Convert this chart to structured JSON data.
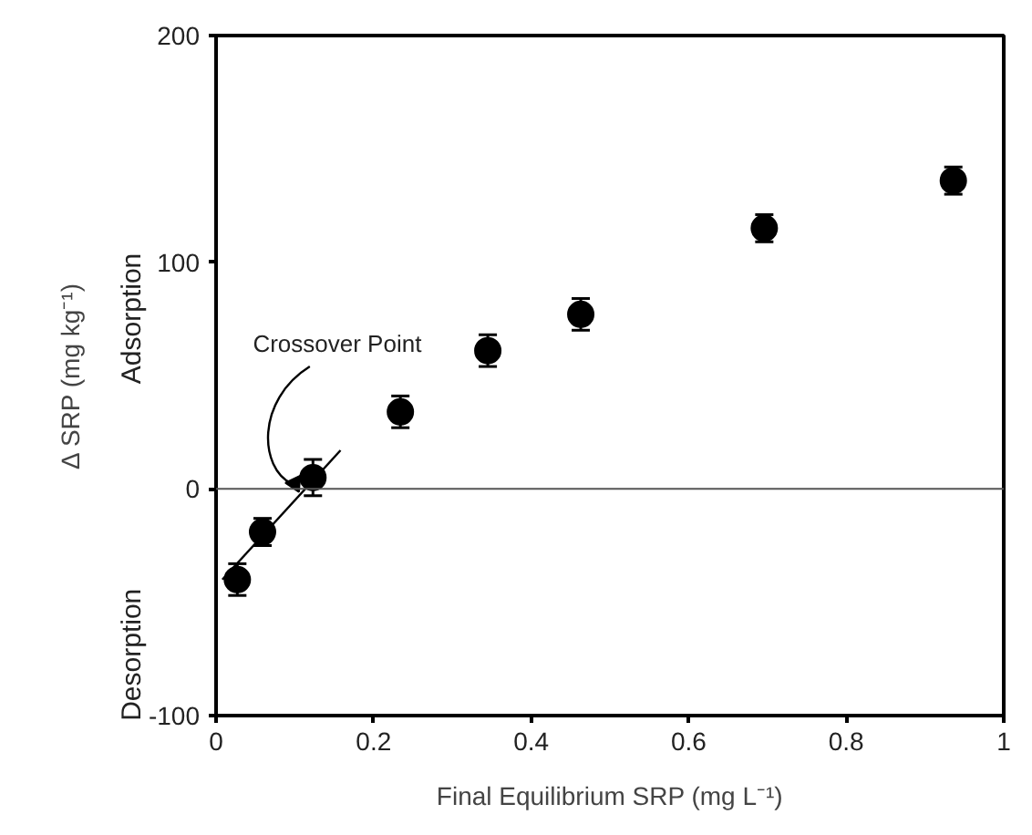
{
  "chart_data": {
    "type": "scatter",
    "xlabel": "Final Equilibrium SRP (mg L⁻¹)",
    "ylabel": "Δ SRP (mg kg⁻¹)",
    "xlim": [
      0,
      1
    ],
    "xticks": [
      0,
      0.2,
      0.4,
      0.6,
      0.8,
      1
    ],
    "ylim": [
      -100,
      200
    ],
    "yticks": [
      -100,
      0,
      100,
      200
    ],
    "grid": false,
    "series": [
      {
        "color": "#000000",
        "marker": "circle",
        "x": [
          0.027,
          0.059,
          0.123,
          0.234,
          0.345,
          0.463,
          0.696,
          0.936
        ],
        "values": [
          -40,
          -19,
          5,
          34,
          61,
          77,
          115,
          136
        ],
        "errors": [
          7,
          6,
          8,
          7,
          7,
          7,
          6,
          6
        ]
      },
      {
        "type": "line",
        "color": "#000000",
        "x": [
          0.008,
          0.158
        ],
        "values": [
          -40,
          17
        ]
      }
    ],
    "ref_lines": [
      {
        "axis": "y",
        "value": 0,
        "color": "#555555"
      }
    ],
    "annotations": [
      {
        "text": "Crossover Point",
        "x": 0.1,
        "y": 0
      },
      "Adsorption",
      "Desorption"
    ]
  }
}
